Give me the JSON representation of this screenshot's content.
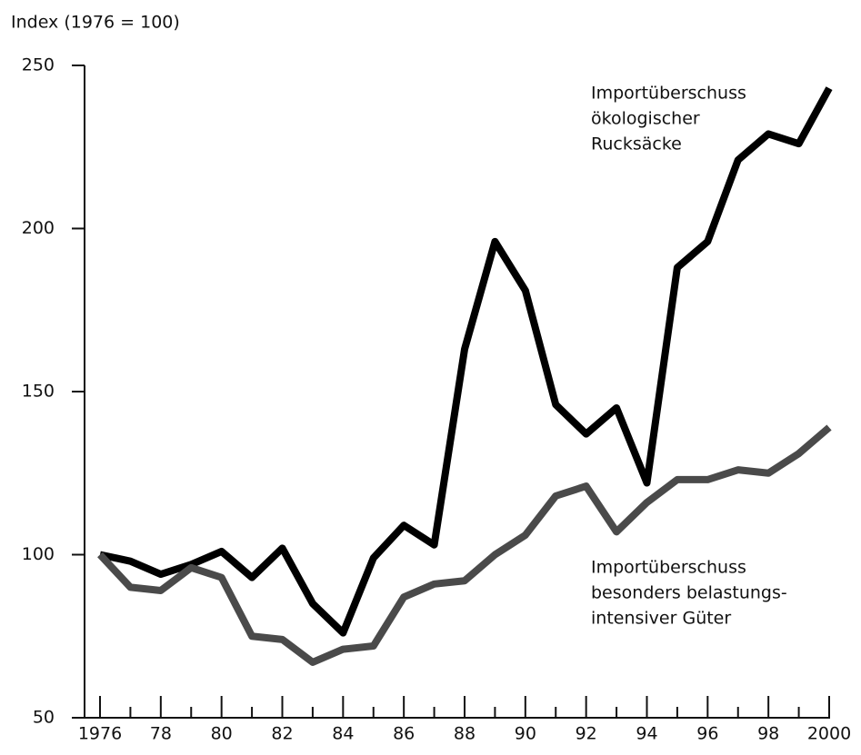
{
  "chart_data": {
    "type": "line",
    "title": "Index (1976 = 100)",
    "x": [
      1976,
      1977,
      1978,
      1979,
      1980,
      1981,
      1982,
      1983,
      1984,
      1985,
      1986,
      1987,
      1988,
      1989,
      1990,
      1991,
      1992,
      1993,
      1994,
      1995,
      1996,
      1997,
      1998,
      1999,
      2000
    ],
    "series": [
      {
        "label_lines": [
          "Importüberschuss",
          "ökologischer",
          "Rucksäcke"
        ],
        "color": "#000000",
        "values": [
          100,
          98,
          94,
          97,
          101,
          93,
          102,
          85,
          76,
          99,
          109,
          103,
          163,
          196,
          181,
          146,
          137,
          145,
          122,
          188,
          196,
          221,
          229,
          226,
          243
        ]
      },
      {
        "label_lines": [
          "Importüberschuss",
          "besonders belastungs-",
          "intensiver Güter"
        ],
        "color": "#4a4a4a",
        "values": [
          100,
          90,
          89,
          96,
          93,
          75,
          74,
          67,
          71,
          72,
          87,
          91,
          92,
          100,
          106,
          118,
          121,
          107,
          116,
          123,
          123,
          126,
          125,
          131,
          139
        ]
      }
    ],
    "xlim": [
      1976,
      2000
    ],
    "xticks": [
      {
        "value": 1976,
        "label": "1976"
      },
      {
        "value": 1978,
        "label": "78"
      },
      {
        "value": 1980,
        "label": "80"
      },
      {
        "value": 1982,
        "label": "82"
      },
      {
        "value": 1984,
        "label": "84"
      },
      {
        "value": 1986,
        "label": "86"
      },
      {
        "value": 1988,
        "label": "88"
      },
      {
        "value": 1990,
        "label": "90"
      },
      {
        "value": 1992,
        "label": "92"
      },
      {
        "value": 1994,
        "label": "94"
      },
      {
        "value": 1996,
        "label": "96"
      },
      {
        "value": 1998,
        "label": "98"
      },
      {
        "value": 2000,
        "label": "2000"
      }
    ],
    "xminorticks": [
      1977,
      1979,
      1981,
      1983,
      1985,
      1987,
      1989,
      1991,
      1993,
      1995,
      1997,
      1999
    ],
    "ylim": [
      50,
      250
    ],
    "yticks": [
      50,
      100,
      150,
      200,
      250
    ]
  }
}
